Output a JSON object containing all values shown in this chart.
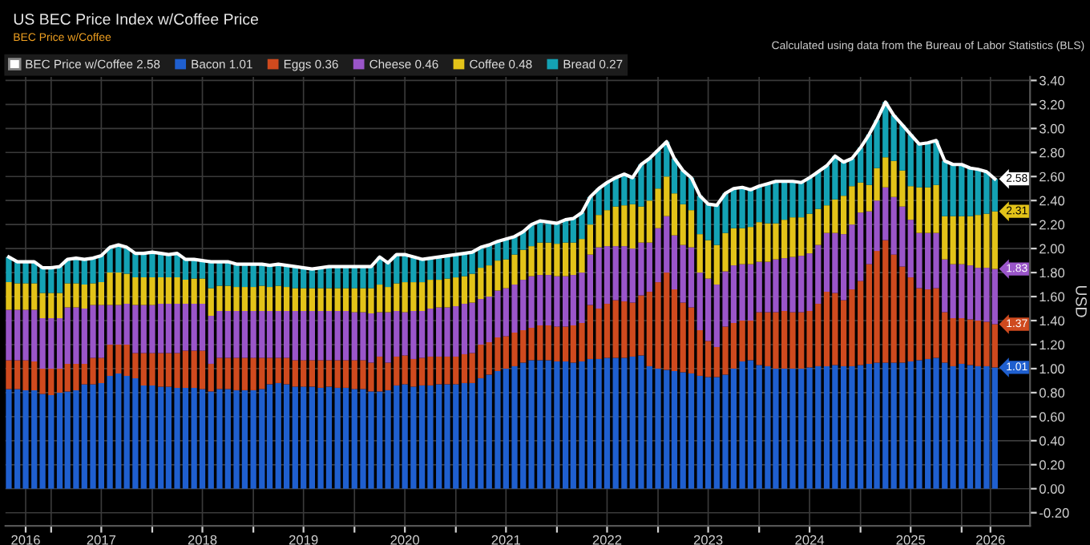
{
  "chart_data": {
    "type": "bar",
    "stacked": true,
    "title": "US BEC Price Index w/Coffee Price",
    "subtitle": "BEC Price w/Coffee",
    "ylabel": "USD",
    "annotations": [
      "Calculated using data from the Bureau of Labor Statistics (BLS)",
      {
        "text": "2.58",
        "x": "2026-05",
        "y": 2.58
      },
      {
        "text": "1.01",
        "x": "2026-05",
        "y": 1.01
      },
      {
        "text": "1.37",
        "x": "2026-05",
        "y": 1.37
      },
      {
        "text": "1.83",
        "x": "2026-05",
        "y": 1.83
      },
      {
        "text": "2.31",
        "x": "2026-05",
        "y": 2.31
      }
    ],
    "x": [
      "2016-08",
      "2016-09",
      "2016-10",
      "2016-11",
      "2016-12",
      "2017-01",
      "2017-02",
      "2017-03",
      "2017-04",
      "2017-05",
      "2017-06",
      "2017-07",
      "2017-08",
      "2017-09",
      "2017-10",
      "2017-11",
      "2017-12",
      "2018-01",
      "2018-02",
      "2018-03",
      "2018-04",
      "2018-05",
      "2018-06",
      "2018-07",
      "2018-08",
      "2018-09",
      "2018-10",
      "2018-11",
      "2018-12",
      "2019-01",
      "2019-02",
      "2019-03",
      "2019-04",
      "2019-05",
      "2019-06",
      "2019-07",
      "2019-08",
      "2019-09",
      "2019-10",
      "2019-11",
      "2019-12",
      "2020-01",
      "2020-02",
      "2020-03",
      "2020-04",
      "2020-05",
      "2020-06",
      "2020-07",
      "2020-08",
      "2020-09",
      "2020-10",
      "2020-11",
      "2020-12",
      "2021-01",
      "2021-02",
      "2021-03",
      "2021-04",
      "2021-05",
      "2021-06",
      "2021-07",
      "2021-08",
      "2021-09",
      "2021-10",
      "2021-11",
      "2021-12",
      "2022-01",
      "2022-02",
      "2022-03",
      "2022-04",
      "2022-05",
      "2022-06",
      "2022-07",
      "2022-08",
      "2022-09",
      "2022-10",
      "2022-11",
      "2022-12",
      "2023-01",
      "2023-02",
      "2023-03",
      "2023-04",
      "2023-05",
      "2023-06",
      "2023-07",
      "2023-08",
      "2023-09",
      "2023-10",
      "2023-11",
      "2023-12",
      "2024-01",
      "2024-02",
      "2024-03",
      "2024-04",
      "2024-05",
      "2024-06",
      "2024-07",
      "2024-08",
      "2024-09",
      "2024-10",
      "2024-11",
      "2024-12",
      "2025-01",
      "2025-02",
      "2025-03",
      "2025-04",
      "2025-05",
      "2025-06",
      "2025-07",
      "2025-08",
      "2025-09",
      "2025-10",
      "2025-11",
      "2025-12",
      "2026-01",
      "2026-02",
      "2026-03",
      "2026-04",
      "2026-05"
    ],
    "series": [
      {
        "name": "BEC Price w/Coffee 2.58",
        "type": "line",
        "color": "#ffffff",
        "values": [
          1.93,
          1.89,
          1.89,
          1.89,
          1.84,
          1.84,
          1.85,
          1.91,
          1.92,
          1.91,
          1.92,
          1.94,
          2.01,
          2.03,
          2.01,
          1.96,
          1.96,
          1.97,
          1.96,
          1.95,
          1.96,
          1.91,
          1.91,
          1.9,
          1.89,
          1.89,
          1.89,
          1.87,
          1.87,
          1.87,
          1.87,
          1.86,
          1.87,
          1.86,
          1.85,
          1.84,
          1.83,
          1.84,
          1.85,
          1.85,
          1.85,
          1.85,
          1.85,
          1.85,
          1.93,
          1.88,
          1.95,
          1.95,
          1.93,
          1.91,
          1.92,
          1.93,
          1.94,
          1.95,
          1.96,
          1.97,
          2.01,
          2.03,
          2.06,
          2.08,
          2.1,
          2.14,
          2.2,
          2.23,
          2.22,
          2.21,
          2.24,
          2.25,
          2.3,
          2.43,
          2.5,
          2.55,
          2.59,
          2.62,
          2.59,
          2.7,
          2.75,
          2.82,
          2.89,
          2.75,
          2.65,
          2.59,
          2.44,
          2.37,
          2.36,
          2.46,
          2.5,
          2.51,
          2.49,
          2.52,
          2.54,
          2.56,
          2.56,
          2.56,
          2.55,
          2.59,
          2.64,
          2.69,
          2.77,
          2.72,
          2.75,
          2.84,
          2.95,
          3.07,
          3.22,
          3.11,
          3.03,
          2.95,
          2.87,
          2.88,
          2.9,
          2.73,
          2.7,
          2.7,
          2.67,
          2.66,
          2.64,
          2.58
        ]
      },
      {
        "name": "Bacon 1.01",
        "color": "#1f5fcf",
        "values": [
          0.83,
          0.83,
          0.82,
          0.82,
          0.79,
          0.78,
          0.8,
          0.81,
          0.82,
          0.87,
          0.87,
          0.88,
          0.94,
          0.96,
          0.94,
          0.92,
          0.86,
          0.86,
          0.85,
          0.85,
          0.84,
          0.84,
          0.84,
          0.83,
          0.81,
          0.83,
          0.83,
          0.82,
          0.82,
          0.82,
          0.83,
          0.87,
          0.88,
          0.87,
          0.85,
          0.85,
          0.85,
          0.84,
          0.85,
          0.84,
          0.84,
          0.83,
          0.83,
          0.81,
          0.81,
          0.82,
          0.86,
          0.87,
          0.85,
          0.86,
          0.86,
          0.87,
          0.87,
          0.87,
          0.88,
          0.88,
          0.92,
          0.95,
          0.98,
          1.0,
          1.02,
          1.05,
          1.07,
          1.07,
          1.07,
          1.06,
          1.06,
          1.05,
          1.06,
          1.08,
          1.08,
          1.09,
          1.09,
          1.09,
          1.1,
          1.11,
          1.02,
          1.0,
          0.99,
          0.98,
          0.97,
          0.96,
          0.94,
          0.93,
          0.93,
          0.95,
          1.0,
          1.06,
          1.07,
          1.03,
          1.02,
          1.0,
          1.0,
          1.0,
          1.0,
          1.01,
          1.02,
          1.02,
          1.03,
          1.02,
          1.02,
          1.03,
          1.04,
          1.05,
          1.05,
          1.05,
          1.05,
          1.06,
          1.07,
          1.08,
          1.09,
          1.05,
          1.02,
          1.04,
          1.03,
          1.02,
          1.02,
          1.01
        ]
      },
      {
        "name": "Eggs 0.36",
        "color": "#cf4a1e",
        "values": [
          0.24,
          0.24,
          0.25,
          0.24,
          0.21,
          0.22,
          0.2,
          0.23,
          0.22,
          0.17,
          0.22,
          0.21,
          0.26,
          0.24,
          0.26,
          0.21,
          0.27,
          0.27,
          0.28,
          0.28,
          0.29,
          0.31,
          0.31,
          0.32,
          0.23,
          0.26,
          0.26,
          0.27,
          0.27,
          0.27,
          0.26,
          0.22,
          0.21,
          0.22,
          0.22,
          0.22,
          0.22,
          0.23,
          0.22,
          0.23,
          0.23,
          0.24,
          0.24,
          0.24,
          0.29,
          0.23,
          0.24,
          0.24,
          0.23,
          0.23,
          0.24,
          0.23,
          0.23,
          0.23,
          0.24,
          0.25,
          0.28,
          0.27,
          0.28,
          0.27,
          0.28,
          0.27,
          0.27,
          0.29,
          0.29,
          0.29,
          0.29,
          0.31,
          0.32,
          0.45,
          0.42,
          0.45,
          0.48,
          0.47,
          0.45,
          0.5,
          0.62,
          0.72,
          0.81,
          0.68,
          0.58,
          0.55,
          0.38,
          0.3,
          0.25,
          0.4,
          0.38,
          0.34,
          0.33,
          0.44,
          0.45,
          0.47,
          0.48,
          0.47,
          0.47,
          0.47,
          0.52,
          0.62,
          0.6,
          0.55,
          0.64,
          0.7,
          0.83,
          0.93,
          1.02,
          0.9,
          0.8,
          0.7,
          0.6,
          0.58,
          0.58,
          0.42,
          0.4,
          0.38,
          0.38,
          0.38,
          0.37,
          0.36
        ]
      },
      {
        "name": "Cheese 0.46",
        "color": "#9a55c9",
        "values": [
          0.42,
          0.42,
          0.42,
          0.43,
          0.42,
          0.42,
          0.42,
          0.47,
          0.47,
          0.46,
          0.44,
          0.44,
          0.33,
          0.33,
          0.34,
          0.4,
          0.4,
          0.4,
          0.41,
          0.41,
          0.41,
          0.39,
          0.39,
          0.39,
          0.4,
          0.39,
          0.39,
          0.39,
          0.39,
          0.39,
          0.39,
          0.39,
          0.39,
          0.39,
          0.41,
          0.41,
          0.41,
          0.41,
          0.41,
          0.41,
          0.41,
          0.4,
          0.4,
          0.41,
          0.37,
          0.42,
          0.38,
          0.36,
          0.4,
          0.39,
          0.4,
          0.41,
          0.41,
          0.42,
          0.42,
          0.42,
          0.38,
          0.38,
          0.39,
          0.4,
          0.4,
          0.42,
          0.43,
          0.42,
          0.42,
          0.42,
          0.42,
          0.42,
          0.42,
          0.42,
          0.51,
          0.48,
          0.45,
          0.46,
          0.45,
          0.44,
          0.41,
          0.45,
          0.47,
          0.45,
          0.48,
          0.5,
          0.48,
          0.52,
          0.52,
          0.46,
          0.48,
          0.47,
          0.47,
          0.42,
          0.42,
          0.44,
          0.44,
          0.46,
          0.47,
          0.48,
          0.49,
          0.49,
          0.5,
          0.55,
          0.54,
          0.57,
          0.44,
          0.42,
          0.44,
          0.48,
          0.5,
          0.48,
          0.46,
          0.47,
          0.46,
          0.44,
          0.45,
          0.45,
          0.45,
          0.44,
          0.45,
          0.46
        ]
      },
      {
        "name": "Coffee 0.48",
        "color": "#e3c319",
        "values": [
          0.23,
          0.22,
          0.22,
          0.22,
          0.21,
          0.21,
          0.21,
          0.2,
          0.2,
          0.2,
          0.18,
          0.19,
          0.27,
          0.27,
          0.25,
          0.23,
          0.23,
          0.23,
          0.22,
          0.22,
          0.22,
          0.2,
          0.21,
          0.21,
          0.23,
          0.21,
          0.21,
          0.2,
          0.2,
          0.2,
          0.21,
          0.2,
          0.21,
          0.2,
          0.19,
          0.19,
          0.19,
          0.19,
          0.19,
          0.19,
          0.19,
          0.2,
          0.2,
          0.21,
          0.23,
          0.21,
          0.23,
          0.25,
          0.24,
          0.24,
          0.24,
          0.23,
          0.24,
          0.24,
          0.23,
          0.24,
          0.26,
          0.26,
          0.25,
          0.24,
          0.25,
          0.25,
          0.25,
          0.27,
          0.27,
          0.27,
          0.28,
          0.27,
          0.28,
          0.25,
          0.27,
          0.3,
          0.33,
          0.34,
          0.37,
          0.3,
          0.35,
          0.33,
          0.33,
          0.35,
          0.34,
          0.31,
          0.32,
          0.32,
          0.33,
          0.32,
          0.31,
          0.3,
          0.31,
          0.33,
          0.32,
          0.3,
          0.32,
          0.33,
          0.32,
          0.33,
          0.3,
          0.23,
          0.28,
          0.32,
          0.32,
          0.25,
          0.22,
          0.27,
          0.25,
          0.3,
          0.3,
          0.28,
          0.38,
          0.38,
          0.4,
          0.36,
          0.4,
          0.4,
          0.41,
          0.44,
          0.45,
          0.48
        ]
      },
      {
        "name": "Bread 0.27",
        "color": "#14a2b4",
        "values": [
          0.21,
          0.18,
          0.18,
          0.18,
          0.21,
          0.21,
          0.22,
          0.2,
          0.21,
          0.21,
          0.21,
          0.22,
          0.21,
          0.23,
          0.22,
          0.2,
          0.2,
          0.21,
          0.2,
          0.19,
          0.2,
          0.17,
          0.16,
          0.15,
          0.22,
          0.2,
          0.2,
          0.19,
          0.19,
          0.19,
          0.18,
          0.18,
          0.18,
          0.18,
          0.18,
          0.17,
          0.16,
          0.17,
          0.18,
          0.18,
          0.18,
          0.18,
          0.18,
          0.18,
          0.23,
          0.2,
          0.24,
          0.23,
          0.21,
          0.19,
          0.18,
          0.19,
          0.19,
          0.19,
          0.19,
          0.18,
          0.17,
          0.17,
          0.16,
          0.17,
          0.15,
          0.15,
          0.18,
          0.18,
          0.17,
          0.17,
          0.19,
          0.2,
          0.22,
          0.23,
          0.22,
          0.23,
          0.24,
          0.26,
          0.22,
          0.35,
          0.35,
          0.32,
          0.29,
          0.29,
          0.28,
          0.27,
          0.32,
          0.3,
          0.33,
          0.33,
          0.33,
          0.34,
          0.31,
          0.3,
          0.33,
          0.35,
          0.32,
          0.3,
          0.29,
          0.3,
          0.31,
          0.33,
          0.36,
          0.28,
          0.23,
          0.29,
          0.42,
          0.4,
          0.46,
          0.38,
          0.38,
          0.43,
          0.36,
          0.37,
          0.37,
          0.46,
          0.43,
          0.43,
          0.4,
          0.38,
          0.35,
          0.27
        ]
      }
    ],
    "xlim": [
      "2016-07-20",
      "2026-09-05"
    ],
    "xticks": [
      {
        "value": "2016-10-01",
        "label": "2016"
      },
      {
        "value": "2017-01-01",
        "label": null
      },
      {
        "value": "2017-07-01",
        "label": "2017"
      },
      {
        "value": "2018-01-01",
        "label": null
      },
      {
        "value": "2018-07-01",
        "label": "2018"
      },
      {
        "value": "2019-01-01",
        "label": null
      },
      {
        "value": "2019-07-01",
        "label": "2019"
      },
      {
        "value": "2020-01-01",
        "label": null
      },
      {
        "value": "2020-07-01",
        "label": "2020"
      },
      {
        "value": "2021-01-01",
        "label": null
      },
      {
        "value": "2021-07-01",
        "label": "2021"
      },
      {
        "value": "2022-01-01",
        "label": null
      },
      {
        "value": "2022-07-01",
        "label": "2022"
      },
      {
        "value": "2023-01-01",
        "label": null
      },
      {
        "value": "2023-07-01",
        "label": "2023"
      },
      {
        "value": "2024-01-01",
        "label": null
      },
      {
        "value": "2024-07-01",
        "label": "2024"
      },
      {
        "value": "2025-01-01",
        "label": null
      },
      {
        "value": "2025-07-01",
        "label": "2025"
      },
      {
        "value": "2026-01-01",
        "label": null
      },
      {
        "value": "2026-04-15",
        "label": "2026"
      }
    ],
    "ylim": [
      -0.31,
      3.43
    ],
    "yticks": [
      {
        "value": -0.2,
        "label": "-0.20"
      },
      {
        "value": 0,
        "label": "0.00"
      },
      {
        "value": 0.2,
        "label": "0.20"
      },
      {
        "value": 0.4,
        "label": "0.40"
      },
      {
        "value": 0.6,
        "label": "0.60"
      },
      {
        "value": 0.8,
        "label": "0.80"
      },
      {
        "value": 1.0,
        "label": "1.00"
      },
      {
        "value": 1.2,
        "label": "1.20"
      },
      {
        "value": 1.4,
        "label": "1.40"
      },
      {
        "value": 1.6,
        "label": "1.60"
      },
      {
        "value": 1.8,
        "label": "1.80"
      },
      {
        "value": 2.0,
        "label": "2.00"
      },
      {
        "value": 2.2,
        "label": "2.20"
      },
      {
        "value": 2.4,
        "label": "2.40"
      },
      {
        "value": 2.6,
        "label": "2.60"
      },
      {
        "value": 2.8,
        "label": "2.80"
      },
      {
        "value": 3.0,
        "label": "3.00"
      },
      {
        "value": 3.2,
        "label": "3.20"
      },
      {
        "value": 3.4,
        "label": "3.40"
      }
    ],
    "grid": true,
    "legend": "top"
  }
}
